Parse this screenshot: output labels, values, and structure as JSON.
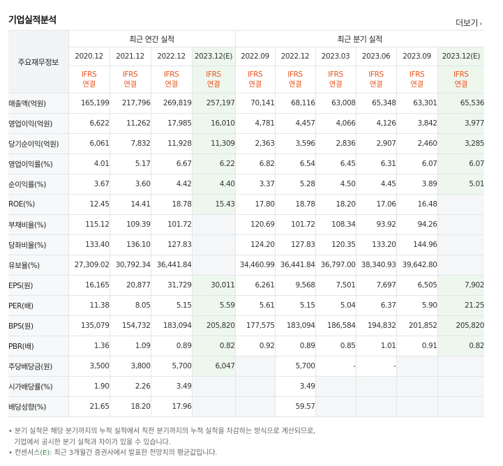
{
  "title": "기업실적분석",
  "more": "더보기",
  "stub_header": "주요재무정보",
  "groups": {
    "annual": "최근 연간 실적",
    "quarter": "최근 분기 실적"
  },
  "periods": [
    "2020.12",
    "2021.12",
    "2022.12",
    "2023.12(E)",
    "2022.09",
    "2022.12",
    "2023.03",
    "2023.06",
    "2023.09",
    "2023.12(E)"
  ],
  "ifrs_top": "IFRS",
  "ifrs_bottom": "연결",
  "rows": [
    {
      "label": "매출액(억원)",
      "values": [
        "165,199",
        "217,796",
        "269,819",
        "257,197",
        "70,141",
        "68,116",
        "63,008",
        "65,348",
        "63,301",
        "65,536"
      ]
    },
    {
      "label": "영업이익(억원)",
      "values": [
        "6,622",
        "11,262",
        "17,985",
        "16,010",
        "4,781",
        "4,457",
        "4,066",
        "4,126",
        "3,842",
        "3,977"
      ]
    },
    {
      "label": "당기순이익(억원)",
      "values": [
        "6,061",
        "7,832",
        "11,928",
        "11,309",
        "2,363",
        "3,596",
        "2,836",
        "2,907",
        "2,460",
        "3,285"
      ]
    },
    {
      "label": "영업이익률(%)",
      "values": [
        "4.01",
        "5.17",
        "6.67",
        "6.22",
        "6.82",
        "6.54",
        "6.45",
        "6.31",
        "6.07",
        "6.07"
      ]
    },
    {
      "label": "순이익률(%)",
      "values": [
        "3.67",
        "3.60",
        "4.42",
        "4.40",
        "3.37",
        "5.28",
        "4.50",
        "4.45",
        "3.89",
        "5.01"
      ]
    },
    {
      "label": "ROE(%)",
      "values": [
        "12.45",
        "14.41",
        "18.78",
        "15.43",
        "17.80",
        "18.78",
        "18.20",
        "17.06",
        "16.48",
        ""
      ]
    },
    {
      "label": "부채비율(%)",
      "values": [
        "115.12",
        "109.39",
        "101.72",
        "",
        "120.69",
        "101.72",
        "108.34",
        "93.92",
        "94.26",
        ""
      ]
    },
    {
      "label": "당좌비율(%)",
      "values": [
        "133.40",
        "136.10",
        "127.83",
        "",
        "124.20",
        "127.83",
        "120.35",
        "133.20",
        "144.96",
        ""
      ]
    },
    {
      "label": "유보율(%)",
      "values": [
        "27,309.02",
        "30,792.34",
        "36,441.84",
        "",
        "34,460.99",
        "36,441.84",
        "36,797.00",
        "38,340.93",
        "39,642.80",
        ""
      ]
    },
    {
      "label": "EPS(원)",
      "values": [
        "16,165",
        "20,877",
        "31,729",
        "30,011",
        "6,261",
        "9,568",
        "7,501",
        "7,697",
        "6,505",
        "7,902"
      ]
    },
    {
      "label": "PER(배)",
      "values": [
        "11.38",
        "8.05",
        "5.15",
        "5.59",
        "5.61",
        "5.15",
        "5.04",
        "6.37",
        "5.90",
        "21.25"
      ]
    },
    {
      "label": "BPS(원)",
      "values": [
        "135,079",
        "154,732",
        "183,094",
        "205,820",
        "177,575",
        "183,094",
        "186,584",
        "194,832",
        "201,852",
        "205,820"
      ]
    },
    {
      "label": "PBR(배)",
      "values": [
        "1.36",
        "1.09",
        "0.89",
        "0.82",
        "0.92",
        "0.89",
        "0.85",
        "1.01",
        "0.91",
        "0.82"
      ]
    },
    {
      "label": "주당배당금(원)",
      "values": [
        "3,500",
        "3,800",
        "5,700",
        "6,047",
        "",
        "5,700",
        "-",
        "-",
        "",
        ""
      ]
    },
    {
      "label": "시가배당률(%)",
      "values": [
        "1.90",
        "2.26",
        "3.49",
        "",
        "",
        "3.49",
        "",
        "",
        "",
        ""
      ]
    },
    {
      "label": "배당성향(%)",
      "values": [
        "21.65",
        "18.20",
        "17.96",
        "",
        "",
        "59.57",
        "",
        "",
        "",
        ""
      ]
    }
  ],
  "notes": {
    "line1": "분기 실적은 해당 분기까지의 누적 실적에서 직전 분기까지의 누적 실적을 차감하는 방식으로 계산되므로,",
    "line2": "기업에서 공시한 분기 실적과 차이가 있을 수 있습니다.",
    "line3_prefix": "컨센서스",
    "line3_e": "(E)",
    "line3_suffix": ": 최근 3개월간 증권사에서 발표한 전망치의 평균값입니다."
  }
}
